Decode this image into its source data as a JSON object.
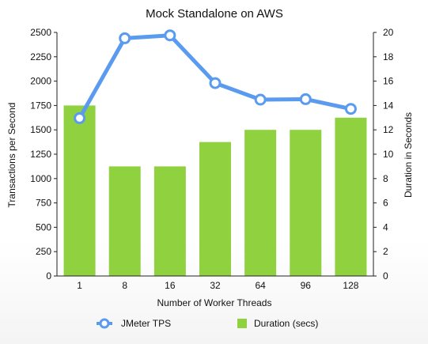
{
  "chart_data": {
    "type": "bar",
    "title": "Mock Standalone on AWS",
    "xlabel": "Number of Worker Threads",
    "ylabel_left": "Transactions per Second",
    "ylabel_right": "Duration in Seconds",
    "categories": [
      "1",
      "8",
      "16",
      "32",
      "64",
      "96",
      "128"
    ],
    "y_left": {
      "range": [
        0,
        2500
      ],
      "ticks": [
        "0",
        "250",
        "500",
        "750",
        "1000",
        "1250",
        "1500",
        "1750",
        "2000",
        "2250",
        "2500"
      ]
    },
    "y_right": {
      "range": [
        0,
        20
      ],
      "ticks": [
        "0",
        "2",
        "4",
        "6",
        "8",
        "10",
        "12",
        "14",
        "16",
        "18",
        "20"
      ]
    },
    "grid": false,
    "legend_position": "bottom",
    "series": [
      {
        "name": "JMeter TPS",
        "type": "line",
        "axis": "left",
        "color": "#5a9bf0",
        "values": [
          1620,
          2440,
          2470,
          1980,
          1810,
          1815,
          1715
        ]
      },
      {
        "name": "Duration (secs)",
        "type": "bar",
        "axis": "right",
        "color": "#8fd13f",
        "values": [
          14,
          9,
          9,
          11,
          12,
          12,
          13
        ]
      }
    ]
  }
}
